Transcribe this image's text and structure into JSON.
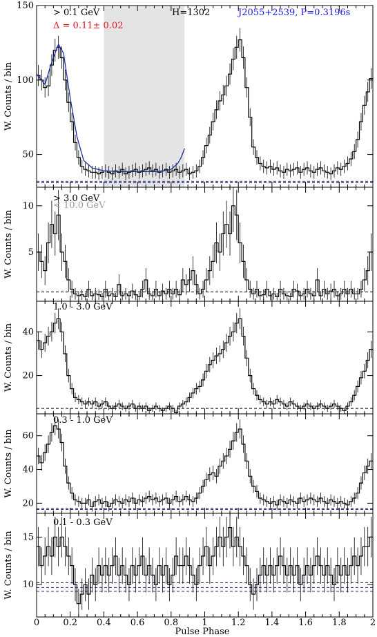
{
  "xlabel": "Pulse Phase",
  "xlim": [
    0,
    2
  ],
  "x_ticks": [
    "0",
    "0.2",
    "0.4",
    "0.6",
    "0.8",
    "1",
    "1.2",
    "1.4",
    "1.6",
    "1.8",
    "2"
  ],
  "colors": {
    "hist": "#000000",
    "fit": "#1c2fa8",
    "blue_dash": "#1a237e",
    "shade": "#e4e4e4",
    "annot_red": "#e8141c",
    "annot_blue": "#1a1ae0",
    "annot_gray": "#9a9a9a"
  },
  "chart_data": [
    {
      "type": "histogram",
      "ylabel": "W. Counts / bin",
      "ylim": [
        28,
        150
      ],
      "y_ticks": [
        {
          "v": 50,
          "t": "50"
        },
        {
          "v": 100,
          "t": "100"
        },
        {
          "v": 150,
          "t": "150"
        }
      ],
      "annotations": [
        {
          "text": "> 0.1 GeV",
          "color": "#000000"
        },
        {
          "text": "Δ = 0.11± 0.02",
          "color": "#e8141c"
        },
        {
          "text": "H=1302",
          "color": "#000000"
        },
        {
          "text": "J2055+2539, P=0.3196s",
          "color": "#1a1ae0"
        }
      ],
      "shaded_phase": [
        0.4,
        0.88
      ],
      "baselines": [
        31,
        32
      ],
      "values": [
        103,
        100,
        95,
        96,
        110,
        120,
        122,
        115,
        100,
        85,
        72,
        58,
        48,
        42,
        40,
        39,
        38,
        38,
        37,
        38,
        39,
        38,
        37,
        39,
        38,
        40,
        37,
        38,
        39,
        40,
        38,
        39,
        40,
        41,
        39,
        40,
        38,
        39,
        40,
        38,
        39,
        40,
        38,
        39,
        40,
        37,
        38,
        39,
        42,
        48,
        56,
        63,
        72,
        80,
        86,
        90,
        96,
        104,
        114,
        122,
        127,
        115,
        95,
        75,
        55,
        48,
        44,
        42,
        41,
        42,
        40,
        41,
        39,
        38,
        40,
        39,
        40,
        41,
        38,
        40,
        41,
        39,
        38,
        40,
        41,
        39,
        38,
        37,
        39,
        41,
        40,
        42,
        44,
        47,
        52,
        60,
        72,
        83,
        92,
        101
      ],
      "fit": [
        [
          0,
          104
        ],
        [
          0.05,
          97
        ],
        [
          0.09,
          112
        ],
        [
          0.13,
          124
        ],
        [
          0.16,
          118
        ],
        [
          0.2,
          88
        ],
        [
          0.24,
          62
        ],
        [
          0.28,
          46
        ],
        [
          0.33,
          41
        ],
        [
          0.4,
          39
        ],
        [
          0.5,
          38.5
        ],
        [
          0.6,
          38.5
        ],
        [
          0.7,
          38.5
        ],
        [
          0.76,
          39
        ],
        [
          0.8,
          40
        ],
        [
          0.84,
          44
        ],
        [
          0.86,
          48
        ],
        [
          0.88,
          54
        ]
      ]
    },
    {
      "type": "histogram",
      "ylabel": "W. Counts / bin",
      "ylim": [
        -0.3,
        12
      ],
      "y_ticks": [
        {
          "v": 5,
          "t": "5"
        },
        {
          "v": 10,
          "t": "10"
        }
      ],
      "annotations": [
        {
          "text": "> 3.0 GeV",
          "color": "#000000"
        },
        {
          "text": "< 10.0 GeV",
          "color": "#9a9a9a"
        }
      ],
      "baselines": [
        0.7
      ],
      "values": [
        5,
        4,
        3,
        6,
        8,
        7,
        9,
        5,
        4,
        2,
        1,
        0.5,
        0.3,
        0.4,
        0.2,
        1,
        0.3,
        0.5,
        0.4,
        0.2,
        1,
        0.3,
        0.5,
        0.2,
        1.5,
        0.3,
        0.5,
        0.3,
        0.8,
        0.4,
        0.2,
        1,
        2,
        0.5,
        0.3,
        1,
        0.3,
        0.8,
        0.5,
        1,
        0.5,
        1,
        0.4,
        2,
        1.5,
        2,
        3,
        1.5,
        0.5,
        1,
        2,
        3,
        4,
        6,
        5,
        7,
        8,
        7,
        10,
        9,
        6,
        4,
        2,
        1,
        0.5,
        1,
        0.3,
        0.4,
        1,
        0.3,
        0.5,
        0.2,
        1,
        0.5,
        0.3,
        0.2,
        1,
        0.8,
        0.3,
        0.5,
        1,
        0.5,
        0.3,
        2,
        0.3,
        1,
        0.5,
        0.8,
        1,
        0.3,
        0.5,
        1,
        0.5,
        1,
        0.5,
        0.5,
        1,
        2,
        3,
        5
      ]
    },
    {
      "type": "histogram",
      "ylabel": "W. Counts / bin",
      "ylim": [
        2.5,
        54
      ],
      "y_ticks": [
        {
          "v": 20,
          "t": "20"
        },
        {
          "v": 40,
          "t": "40"
        }
      ],
      "annotations": [
        {
          "text": "1.0 - 3.0 GeV",
          "color": "#000000"
        }
      ],
      "baselines": [
        5
      ],
      "values": [
        36,
        32,
        35,
        38,
        40,
        44,
        46,
        40,
        30,
        20,
        14,
        10,
        9,
        8,
        7,
        8,
        7,
        8,
        6,
        7,
        8,
        6,
        5,
        6,
        7,
        6,
        5,
        6,
        7,
        5,
        6,
        5,
        6,
        4,
        5,
        6,
        5,
        4,
        5,
        6,
        5,
        3,
        6,
        7,
        8,
        10,
        12,
        14,
        15,
        18,
        22,
        25,
        27,
        29,
        30,
        32,
        35,
        38,
        40,
        44,
        46,
        38,
        28,
        20,
        14,
        11,
        9,
        8,
        7,
        8,
        7,
        9,
        8,
        7,
        6,
        8,
        7,
        6,
        5,
        6,
        7,
        6,
        5,
        6,
        7,
        6,
        5,
        6,
        7,
        6,
        5,
        4,
        6,
        8,
        11,
        15,
        19,
        22,
        27,
        32
      ]
    },
    {
      "type": "histogram",
      "ylabel": "W. Counts / bin",
      "ylim": [
        14,
        73
      ],
      "y_ticks": [
        {
          "v": 20,
          "t": "20"
        },
        {
          "v": 40,
          "t": "40"
        },
        {
          "v": 60,
          "t": "60"
        }
      ],
      "annotations": [
        {
          "text": "0.3 - 1.0 GeV",
          "color": "#000000"
        }
      ],
      "baselines": [
        16.3,
        16.8
      ],
      "values": [
        48,
        44,
        50,
        55,
        62,
        66,
        64,
        56,
        42,
        32,
        26,
        22,
        21,
        20,
        20,
        22,
        18,
        21,
        22,
        20,
        21,
        18,
        20,
        22,
        21,
        20,
        22,
        21,
        23,
        20,
        22,
        21,
        23,
        24,
        22,
        23,
        21,
        22,
        23,
        20,
        22,
        24,
        21,
        22,
        24,
        22,
        21,
        23,
        26,
        30,
        34,
        37,
        38,
        36,
        42,
        45,
        48,
        52,
        57,
        62,
        64,
        55,
        45,
        36,
        30,
        27,
        23,
        22,
        21,
        20,
        21,
        19,
        22,
        21,
        20,
        22,
        21,
        20,
        23,
        21,
        22,
        23,
        22,
        21,
        23,
        21,
        20,
        22,
        21,
        20,
        21,
        20,
        19,
        21,
        23,
        26,
        32,
        38,
        42,
        45
      ]
    },
    {
      "type": "histogram",
      "ylabel": "W. Counts / bin",
      "ylim": [
        6.6,
        17.5
      ],
      "y_ticks": [
        {
          "v": 10,
          "t": "10"
        },
        {
          "v": 15,
          "t": "15"
        }
      ],
      "annotations": [
        {
          "text": "0.1 - 0.3 GeV",
          "color": "#000000"
        }
      ],
      "baselines": [
        9.3,
        9.7,
        10.2
      ],
      "values": [
        14,
        12,
        13,
        14,
        13,
        15,
        14,
        15,
        14,
        13,
        12,
        10,
        8,
        9,
        10,
        9,
        11,
        10,
        12,
        11,
        12,
        11,
        12,
        13,
        11,
        12,
        11,
        10,
        12,
        11,
        12,
        13,
        11,
        12,
        11,
        10,
        12,
        11,
        12,
        10,
        11,
        13,
        12,
        12,
        13,
        12,
        11,
        10,
        12,
        13,
        14,
        12,
        13,
        14,
        15,
        14,
        15,
        16,
        14,
        15,
        14,
        13,
        12,
        10,
        9,
        10,
        11,
        12,
        11,
        12,
        11,
        12,
        13,
        12,
        11,
        12,
        11,
        12,
        10,
        11,
        12,
        11,
        12,
        13,
        12,
        11,
        12,
        11,
        10,
        12,
        11,
        12,
        11,
        12,
        13,
        12,
        13,
        14,
        14,
        15
      ]
    }
  ]
}
